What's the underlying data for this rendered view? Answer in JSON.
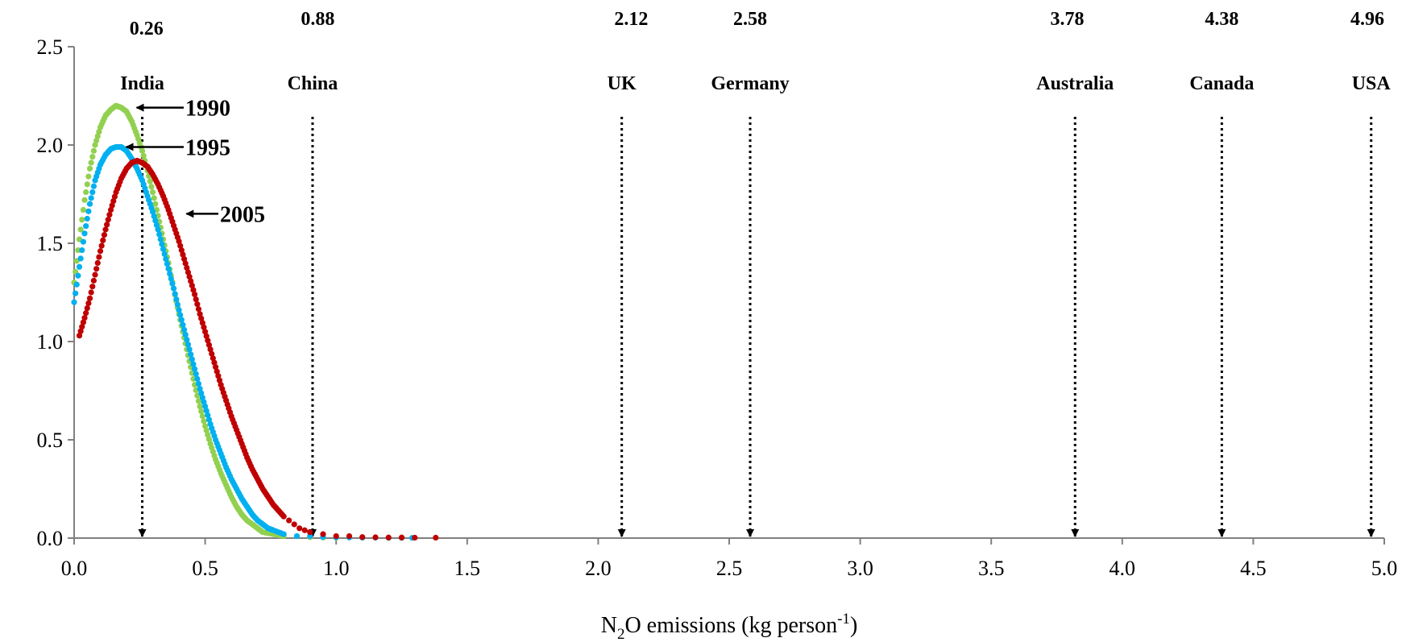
{
  "chart_data": {
    "type": "scatter",
    "title": "",
    "xlabel": {
      "prefix": "N",
      "sub": "2",
      "mid": "O emissions (kg person",
      "sup": "-1",
      "suffix": ")"
    },
    "ylabel": "",
    "xlim": [
      0,
      5
    ],
    "ylim": [
      0,
      2.5
    ],
    "x_ticks": [
      "0.0",
      "0.5",
      "1.0",
      "1.5",
      "2.0",
      "2.5",
      "3.0",
      "3.5",
      "4.0",
      "4.5",
      "5.0"
    ],
    "y_ticks": [
      "0.0",
      "0.5",
      "1.0",
      "1.5",
      "2.0",
      "2.5"
    ],
    "grid": false,
    "series": [
      {
        "name": "1990",
        "color": "#92d050",
        "points": [
          [
            0.0,
            1.3
          ],
          [
            0.02,
            1.52
          ],
          [
            0.04,
            1.72
          ],
          [
            0.06,
            1.88
          ],
          [
            0.08,
            2.0
          ],
          [
            0.1,
            2.09
          ],
          [
            0.12,
            2.15
          ],
          [
            0.14,
            2.18
          ],
          [
            0.16,
            2.2
          ],
          [
            0.18,
            2.19
          ],
          [
            0.2,
            2.17
          ],
          [
            0.22,
            2.12
          ],
          [
            0.24,
            2.05
          ],
          [
            0.26,
            1.97
          ],
          [
            0.28,
            1.87
          ],
          [
            0.3,
            1.76
          ],
          [
            0.32,
            1.64
          ],
          [
            0.34,
            1.52
          ],
          [
            0.36,
            1.4
          ],
          [
            0.38,
            1.27
          ],
          [
            0.4,
            1.14
          ],
          [
            0.42,
            1.02
          ],
          [
            0.44,
            0.9
          ],
          [
            0.46,
            0.78
          ],
          [
            0.48,
            0.67
          ],
          [
            0.5,
            0.57
          ],
          [
            0.52,
            0.48
          ],
          [
            0.54,
            0.4
          ],
          [
            0.56,
            0.33
          ],
          [
            0.58,
            0.27
          ],
          [
            0.6,
            0.21
          ],
          [
            0.62,
            0.16
          ],
          [
            0.64,
            0.12
          ],
          [
            0.66,
            0.09
          ],
          [
            0.68,
            0.07
          ],
          [
            0.7,
            0.05
          ],
          [
            0.72,
            0.03
          ],
          [
            0.76,
            0.02
          ],
          [
            0.8,
            0.01
          ],
          [
            0.85,
            0.01
          ],
          [
            0.9,
            0.005
          ],
          [
            0.95,
            0.003
          ],
          [
            1.0,
            0.002
          ]
        ]
      },
      {
        "name": "1995",
        "color": "#00b0f0",
        "points": [
          [
            0.0,
            1.2
          ],
          [
            0.02,
            1.38
          ],
          [
            0.04,
            1.55
          ],
          [
            0.06,
            1.7
          ],
          [
            0.08,
            1.82
          ],
          [
            0.1,
            1.9
          ],
          [
            0.12,
            1.95
          ],
          [
            0.14,
            1.98
          ],
          [
            0.16,
            1.99
          ],
          [
            0.18,
            1.99
          ],
          [
            0.2,
            1.97
          ],
          [
            0.22,
            1.93
          ],
          [
            0.24,
            1.88
          ],
          [
            0.26,
            1.82
          ],
          [
            0.28,
            1.74
          ],
          [
            0.3,
            1.66
          ],
          [
            0.32,
            1.57
          ],
          [
            0.34,
            1.47
          ],
          [
            0.36,
            1.37
          ],
          [
            0.38,
            1.27
          ],
          [
            0.4,
            1.16
          ],
          [
            0.42,
            1.06
          ],
          [
            0.44,
            0.96
          ],
          [
            0.46,
            0.86
          ],
          [
            0.48,
            0.76
          ],
          [
            0.5,
            0.67
          ],
          [
            0.52,
            0.58
          ],
          [
            0.54,
            0.5
          ],
          [
            0.56,
            0.43
          ],
          [
            0.58,
            0.36
          ],
          [
            0.6,
            0.3
          ],
          [
            0.62,
            0.25
          ],
          [
            0.64,
            0.2
          ],
          [
            0.66,
            0.16
          ],
          [
            0.68,
            0.12
          ],
          [
            0.7,
            0.09
          ],
          [
            0.72,
            0.07
          ],
          [
            0.74,
            0.05
          ],
          [
            0.76,
            0.04
          ],
          [
            0.8,
            0.02
          ],
          [
            0.85,
            0.01
          ],
          [
            0.9,
            0.01
          ],
          [
            0.95,
            0.005
          ],
          [
            1.0,
            0.004
          ],
          [
            1.05,
            0.003
          ],
          [
            1.1,
            0.002
          ],
          [
            1.15,
            0.002
          ],
          [
            1.2,
            0.001
          ],
          [
            1.25,
            0.001
          ],
          [
            1.29,
            0.001
          ]
        ]
      },
      {
        "name": "2005",
        "color": "#c00000",
        "points": [
          [
            0.02,
            1.03
          ],
          [
            0.04,
            1.12
          ],
          [
            0.06,
            1.22
          ],
          [
            0.08,
            1.34
          ],
          [
            0.1,
            1.46
          ],
          [
            0.12,
            1.57
          ],
          [
            0.14,
            1.67
          ],
          [
            0.16,
            1.76
          ],
          [
            0.18,
            1.83
          ],
          [
            0.2,
            1.88
          ],
          [
            0.22,
            1.91
          ],
          [
            0.24,
            1.92
          ],
          [
            0.26,
            1.91
          ],
          [
            0.28,
            1.89
          ],
          [
            0.3,
            1.85
          ],
          [
            0.32,
            1.8
          ],
          [
            0.34,
            1.74
          ],
          [
            0.36,
            1.67
          ],
          [
            0.38,
            1.59
          ],
          [
            0.4,
            1.51
          ],
          [
            0.42,
            1.42
          ],
          [
            0.44,
            1.33
          ],
          [
            0.46,
            1.24
          ],
          [
            0.48,
            1.14
          ],
          [
            0.5,
            1.05
          ],
          [
            0.52,
            0.96
          ],
          [
            0.54,
            0.87
          ],
          [
            0.56,
            0.78
          ],
          [
            0.58,
            0.7
          ],
          [
            0.6,
            0.62
          ],
          [
            0.62,
            0.55
          ],
          [
            0.64,
            0.48
          ],
          [
            0.66,
            0.41
          ],
          [
            0.68,
            0.35
          ],
          [
            0.7,
            0.3
          ],
          [
            0.72,
            0.25
          ],
          [
            0.74,
            0.21
          ],
          [
            0.76,
            0.17
          ],
          [
            0.78,
            0.14
          ],
          [
            0.8,
            0.11
          ],
          [
            0.82,
            0.09
          ],
          [
            0.84,
            0.07
          ],
          [
            0.86,
            0.05
          ],
          [
            0.88,
            0.04
          ],
          [
            0.9,
            0.03
          ],
          [
            0.95,
            0.02
          ],
          [
            1.0,
            0.01
          ],
          [
            1.05,
            0.01
          ],
          [
            1.1,
            0.005
          ],
          [
            1.15,
            0.004
          ],
          [
            1.2,
            0.003
          ],
          [
            1.25,
            0.003
          ],
          [
            1.3,
            0.002
          ],
          [
            1.38,
            0.002
          ]
        ]
      }
    ],
    "countries": [
      {
        "name": "India",
        "value_label": "0.26",
        "x": 0.26
      },
      {
        "name": "China",
        "value_label": "0.88",
        "x": 0.91
      },
      {
        "name": "UK",
        "value_label": "2.12",
        "x": 2.09
      },
      {
        "name": "Germany",
        "value_label": "2.58",
        "x": 2.58
      },
      {
        "name": "Australia",
        "value_label": "3.78",
        "x": 3.82
      },
      {
        "name": "Canada",
        "value_label": "4.38",
        "x": 4.38
      },
      {
        "name": "USA",
        "value_label": "4.96",
        "x": 4.95
      }
    ],
    "year_annotations": [
      {
        "label": "1990",
        "x": 0.22,
        "y": 2.19
      },
      {
        "label": "1995",
        "x": 0.18,
        "y": 1.99
      },
      {
        "label": "2005",
        "x": 0.41,
        "y": 1.65
      }
    ]
  }
}
